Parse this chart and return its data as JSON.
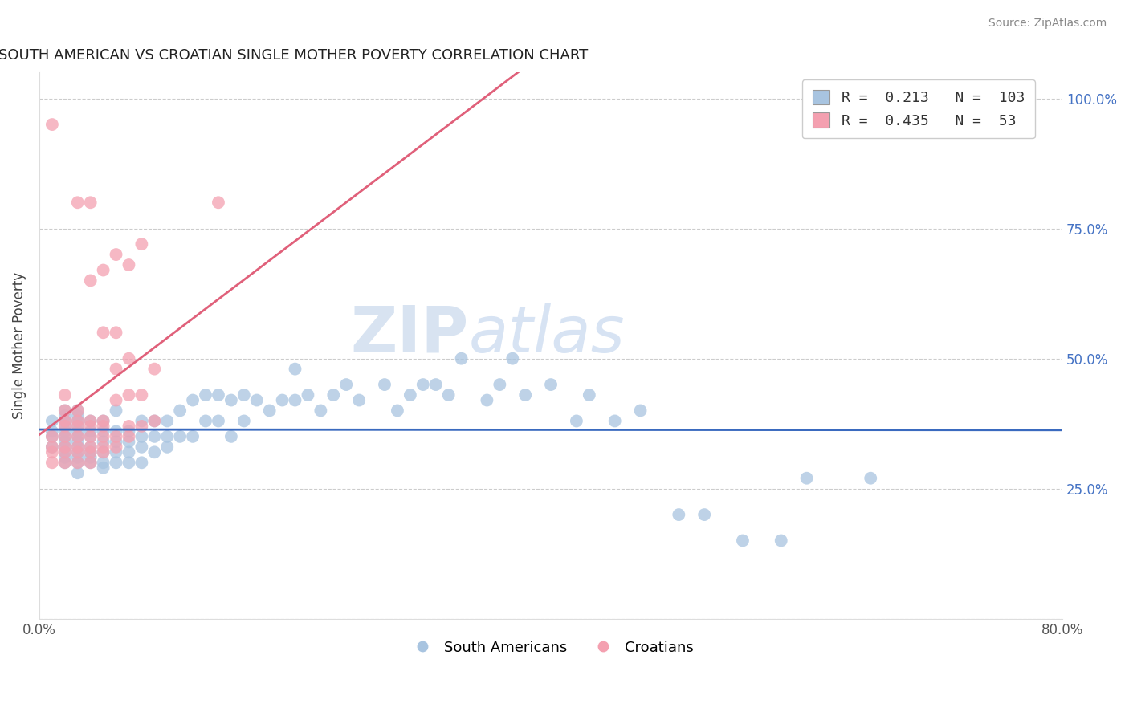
{
  "title": "SOUTH AMERICAN VS CROATIAN SINGLE MOTHER POVERTY CORRELATION CHART",
  "source": "Source: ZipAtlas.com",
  "ylabel": "Single Mother Poverty",
  "xlim": [
    0.0,
    0.8
  ],
  "ylim": [
    0.0,
    1.05
  ],
  "xticks": [
    0.0,
    0.8
  ],
  "xticklabels": [
    "0.0%",
    "80.0%"
  ],
  "yticks_right": [
    0.25,
    0.5,
    0.75,
    1.0
  ],
  "yticklabels_right": [
    "25.0%",
    "50.0%",
    "75.0%",
    "100.0%"
  ],
  "blue_color": "#a8c4e0",
  "pink_color": "#f4a0b0",
  "blue_line_color": "#3a6abf",
  "pink_line_color": "#e0607a",
  "legend_R_blue": "0.213",
  "legend_N_blue": "103",
  "legend_R_pink": "0.435",
  "legend_N_pink": "53",
  "legend_label_blue": "South Americans",
  "legend_label_pink": "Croatians",
  "watermark_ZIP": "ZIP",
  "watermark_atlas": "atlas",
  "blue_x": [
    0.01,
    0.01,
    0.01,
    0.01,
    0.02,
    0.02,
    0.02,
    0.02,
    0.02,
    0.02,
    0.02,
    0.02,
    0.02,
    0.02,
    0.02,
    0.03,
    0.03,
    0.03,
    0.03,
    0.03,
    0.03,
    0.03,
    0.03,
    0.03,
    0.03,
    0.03,
    0.03,
    0.04,
    0.04,
    0.04,
    0.04,
    0.04,
    0.04,
    0.04,
    0.05,
    0.05,
    0.05,
    0.05,
    0.05,
    0.05,
    0.06,
    0.06,
    0.06,
    0.06,
    0.06,
    0.07,
    0.07,
    0.07,
    0.07,
    0.08,
    0.08,
    0.08,
    0.08,
    0.09,
    0.09,
    0.09,
    0.1,
    0.1,
    0.1,
    0.11,
    0.11,
    0.12,
    0.12,
    0.13,
    0.13,
    0.14,
    0.14,
    0.15,
    0.15,
    0.16,
    0.16,
    0.17,
    0.18,
    0.19,
    0.2,
    0.2,
    0.21,
    0.22,
    0.23,
    0.24,
    0.25,
    0.27,
    0.28,
    0.29,
    0.3,
    0.31,
    0.32,
    0.33,
    0.35,
    0.36,
    0.37,
    0.38,
    0.4,
    0.42,
    0.43,
    0.45,
    0.47,
    0.5,
    0.52,
    0.55,
    0.58,
    0.6,
    0.65
  ],
  "blue_y": [
    0.33,
    0.35,
    0.36,
    0.38,
    0.3,
    0.31,
    0.33,
    0.34,
    0.35,
    0.36,
    0.37,
    0.38,
    0.39,
    0.4,
    0.32,
    0.28,
    0.3,
    0.31,
    0.32,
    0.33,
    0.34,
    0.35,
    0.36,
    0.37,
    0.38,
    0.39,
    0.4,
    0.3,
    0.31,
    0.32,
    0.33,
    0.35,
    0.36,
    0.38,
    0.29,
    0.3,
    0.32,
    0.34,
    0.36,
    0.38,
    0.3,
    0.32,
    0.34,
    0.36,
    0.4,
    0.3,
    0.32,
    0.34,
    0.36,
    0.3,
    0.33,
    0.35,
    0.38,
    0.32,
    0.35,
    0.38,
    0.33,
    0.35,
    0.38,
    0.35,
    0.4,
    0.35,
    0.42,
    0.38,
    0.43,
    0.38,
    0.43,
    0.35,
    0.42,
    0.38,
    0.43,
    0.42,
    0.4,
    0.42,
    0.42,
    0.48,
    0.43,
    0.4,
    0.43,
    0.45,
    0.42,
    0.45,
    0.4,
    0.43,
    0.45,
    0.45,
    0.43,
    0.5,
    0.42,
    0.45,
    0.5,
    0.43,
    0.45,
    0.38,
    0.43,
    0.38,
    0.4,
    0.2,
    0.2,
    0.15,
    0.15,
    0.27,
    0.27
  ],
  "pink_x": [
    0.01,
    0.01,
    0.01,
    0.01,
    0.01,
    0.02,
    0.02,
    0.02,
    0.02,
    0.02,
    0.02,
    0.02,
    0.02,
    0.03,
    0.03,
    0.03,
    0.03,
    0.03,
    0.03,
    0.03,
    0.03,
    0.04,
    0.04,
    0.04,
    0.04,
    0.04,
    0.04,
    0.04,
    0.04,
    0.05,
    0.05,
    0.05,
    0.05,
    0.05,
    0.05,
    0.05,
    0.06,
    0.06,
    0.06,
    0.06,
    0.06,
    0.06,
    0.07,
    0.07,
    0.07,
    0.07,
    0.07,
    0.08,
    0.08,
    0.08,
    0.09,
    0.09,
    0.14
  ],
  "pink_y": [
    0.3,
    0.32,
    0.33,
    0.35,
    0.95,
    0.3,
    0.32,
    0.33,
    0.35,
    0.37,
    0.38,
    0.4,
    0.43,
    0.3,
    0.32,
    0.33,
    0.35,
    0.37,
    0.38,
    0.4,
    0.8,
    0.3,
    0.32,
    0.33,
    0.35,
    0.37,
    0.38,
    0.8,
    0.65,
    0.32,
    0.33,
    0.35,
    0.37,
    0.38,
    0.55,
    0.67,
    0.33,
    0.35,
    0.42,
    0.48,
    0.55,
    0.7,
    0.35,
    0.37,
    0.43,
    0.5,
    0.68,
    0.37,
    0.43,
    0.72,
    0.38,
    0.48,
    0.8
  ]
}
